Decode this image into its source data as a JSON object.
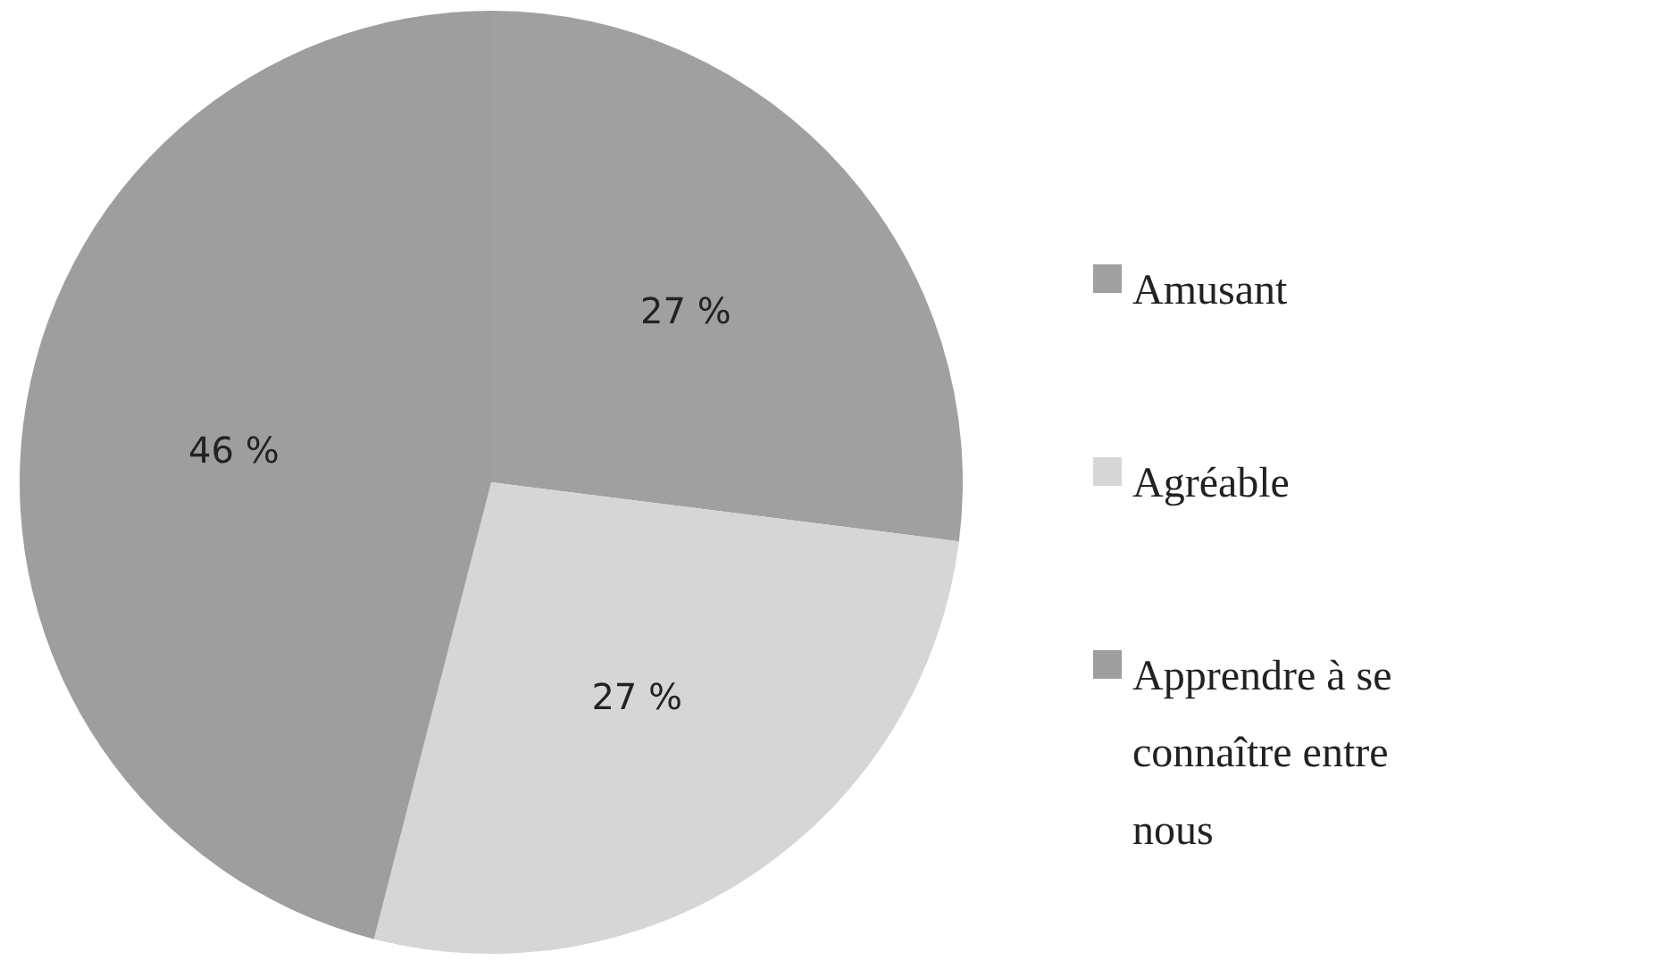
{
  "chart_data": {
    "type": "pie",
    "categories": [
      "Amusant",
      "Agréable",
      "Apprendre à se connaître entre nous"
    ],
    "values": [
      27,
      27,
      46
    ],
    "colors": [
      "#a0a0a0",
      "#d6d6d6",
      "#9e9e9e"
    ],
    "value_labels": [
      "27 %",
      "27 %",
      "46 %"
    ],
    "legend": "right"
  }
}
